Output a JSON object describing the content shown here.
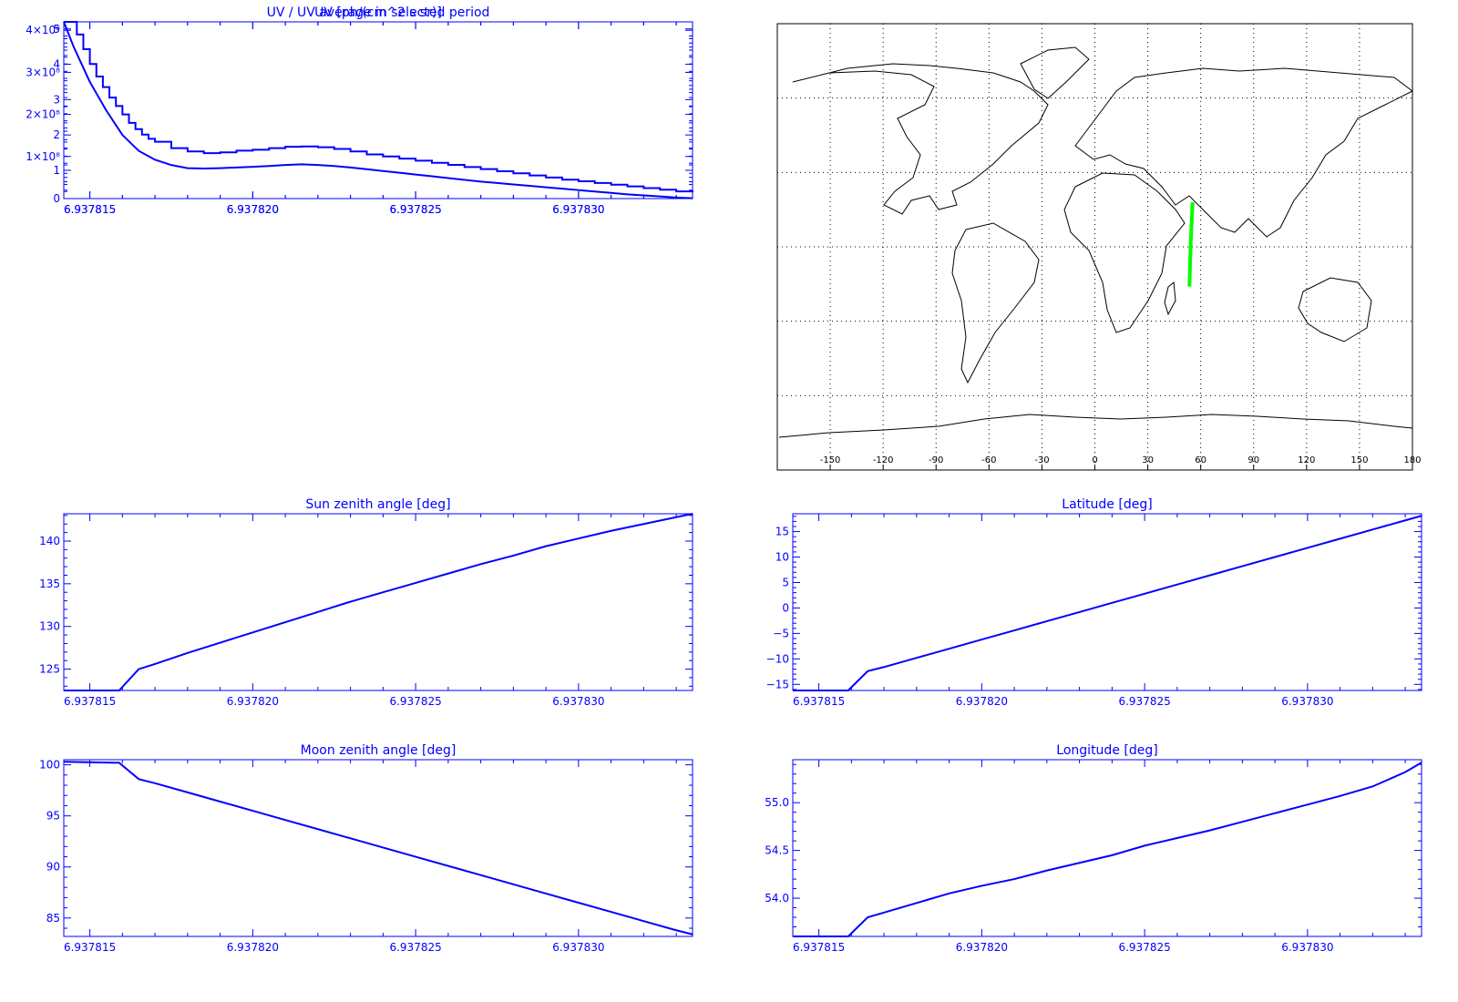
{
  "colors": {
    "plot": "#0000ff",
    "frame": "#0000ff",
    "map_coast": "#000000",
    "map_grid": "#000000",
    "track": "#00ff00"
  },
  "chart_data": [
    {
      "id": "uv",
      "type": "line",
      "title": "UV [ph/(cm^2 s sr)]",
      "xlabel": "",
      "ylabel": "",
      "xlim": [
        6.9378142,
        6.9378335
      ],
      "ylim": [
        0,
        420000000.0
      ],
      "x_ticks": [
        6.937815,
        6.93782,
        6.937825,
        6.93783
      ],
      "x_tick_labels": [
        "6.937815",
        "6.937820",
        "6.937825",
        "6.937830"
      ],
      "y_ticks": [
        0,
        100000000.0,
        200000000.0,
        300000000.0,
        400000000.0
      ],
      "y_tick_labels": [
        "0",
        "1×10⁸",
        "2×10⁸",
        "3×10⁸",
        "4×10⁸"
      ],
      "series": [
        {
          "style": "steps",
          "x": [
            6.937814,
            6.9378144,
            6.9378146,
            6.9378148,
            6.937815,
            6.9378152,
            6.9378154,
            6.9378156,
            6.9378158,
            6.937816,
            6.9378162,
            6.9378164,
            6.9378166,
            6.9378168,
            6.937817,
            6.9378175,
            6.937818,
            6.9378185,
            6.937819,
            6.9378195,
            6.93782,
            6.9378205,
            6.937821,
            6.9378215,
            6.937822,
            6.9378225,
            6.937823,
            6.9378235,
            6.937824,
            6.9378245,
            6.937825,
            6.9378255,
            6.937826,
            6.9378265,
            6.937827,
            6.9378275,
            6.937828,
            6.9378285,
            6.937829,
            6.9378295,
            6.93783,
            6.9378305,
            6.937831,
            6.9378315,
            6.937832,
            6.9378325,
            6.937833,
            6.9378335
          ],
          "y": [
            420000000.0,
            420000000.0,
            390000000.0,
            355000000.0,
            320000000.0,
            290000000.0,
            265000000.0,
            240000000.0,
            220000000.0,
            200000000.0,
            180000000.0,
            165000000.0,
            152000000.0,
            142000000.0,
            135000000.0,
            120000000.0,
            112000000.0,
            108000000.0,
            110000000.0,
            114000000.0,
            116000000.0,
            120000000.0,
            123000000.0,
            124000000.0,
            122000000.0,
            118000000.0,
            112000000.0,
            105000000.0,
            100000000.0,
            95000000.0,
            90000000.0,
            85000000.0,
            80000000.0,
            75000000.0,
            70000000.0,
            65000000.0,
            60000000.0,
            55000000.0,
            50000000.0,
            45000000.0,
            41000000.0,
            37000000.0,
            33000000.0,
            29000000.0,
            25000000.0,
            21000000.0,
            17000000.0,
            15000000.0
          ]
        }
      ]
    },
    {
      "id": "uv_ratio",
      "type": "line",
      "title": "UV / UV average in selected period",
      "xlabel": "",
      "ylabel": "",
      "xlim": [
        6.9378142,
        6.9378335
      ],
      "ylim": [
        0.2,
        5.2
      ],
      "x_ticks": [
        6.937815,
        6.93782,
        6.937825,
        6.93783
      ],
      "x_tick_labels": [
        "6.937815",
        "6.937820",
        "6.937825",
        "6.937830"
      ],
      "y_ticks": [
        1,
        2,
        3,
        4,
        5
      ],
      "y_tick_labels": [
        "1",
        "2",
        "3",
        "4",
        "5"
      ],
      "series": [
        {
          "x": [
            6.9378142,
            6.9378145,
            6.9378148,
            6.937815,
            6.9378155,
            6.937816,
            6.9378165,
            6.937817,
            6.9378175,
            6.937818,
            6.9378185,
            6.937819,
            6.9378195,
            6.93782,
            6.9378205,
            6.937821,
            6.9378215,
            6.937822,
            6.9378225,
            6.937823,
            6.9378235,
            6.937824,
            6.9378245,
            6.937825,
            6.9378255,
            6.937826,
            6.9378265,
            6.937827,
            6.9378275,
            6.937828,
            6.9378285,
            6.937829,
            6.9378295,
            6.93783,
            6.9378305,
            6.937831,
            6.9378315,
            6.937832,
            6.9378325,
            6.937833,
            6.9378335
          ],
          "y": [
            5.2,
            4.5,
            3.9,
            3.5,
            2.7,
            2.0,
            1.55,
            1.3,
            1.15,
            1.06,
            1.05,
            1.06,
            1.08,
            1.1,
            1.12,
            1.15,
            1.17,
            1.15,
            1.12,
            1.08,
            1.03,
            0.98,
            0.93,
            0.88,
            0.83,
            0.78,
            0.73,
            0.68,
            0.64,
            0.6,
            0.56,
            0.52,
            0.48,
            0.44,
            0.4,
            0.36,
            0.32,
            0.29,
            0.26,
            0.23,
            0.21
          ]
        }
      ]
    },
    {
      "id": "sun_zenith",
      "type": "line",
      "title": "Sun zenith angle [deg]",
      "xlabel": "",
      "ylabel": "",
      "xlim": [
        6.9378142,
        6.9378335
      ],
      "ylim": [
        122.5,
        143.2
      ],
      "x_ticks": [
        6.937815,
        6.93782,
        6.937825,
        6.93783
      ],
      "x_tick_labels": [
        "6.937815",
        "6.937820",
        "6.937825",
        "6.937830"
      ],
      "y_ticks": [
        125,
        130,
        135,
        140
      ],
      "y_tick_labels": [
        "125",
        "130",
        "135",
        "140"
      ],
      "series": [
        {
          "x": [
            6.9378142,
            6.9378159,
            6.9378165,
            6.937817,
            6.937818,
            6.937819,
            6.93782,
            6.937821,
            6.937822,
            6.937823,
            6.937824,
            6.937825,
            6.937826,
            6.937827,
            6.937828,
            6.937829,
            6.93783,
            6.937831,
            6.937832,
            6.937833,
            6.9378335
          ],
          "y": [
            122.5,
            122.5,
            125.0,
            125.6,
            126.9,
            128.1,
            129.3,
            130.5,
            131.7,
            132.9,
            134.0,
            135.1,
            136.2,
            137.3,
            138.3,
            139.4,
            140.3,
            141.2,
            142.0,
            142.8,
            143.2
          ]
        }
      ]
    },
    {
      "id": "latitude",
      "type": "line",
      "title": "Latitude [deg]",
      "xlabel": "",
      "ylabel": "",
      "xlim": [
        6.9378142,
        6.9378335
      ],
      "ylim": [
        -16.2,
        18.5
      ],
      "x_ticks": [
        6.937815,
        6.93782,
        6.937825,
        6.93783
      ],
      "x_tick_labels": [
        "6.937815",
        "6.937820",
        "6.937825",
        "6.937830"
      ],
      "y_ticks": [
        -15,
        -10,
        -5,
        0,
        5,
        10,
        15
      ],
      "y_tick_labels": [
        "−15",
        "−10",
        "−5",
        "0",
        "5",
        "10",
        "15"
      ],
      "series": [
        {
          "x": [
            6.9378142,
            6.9378159,
            6.9378165,
            6.937817,
            6.937818,
            6.937819,
            6.93782,
            6.937821,
            6.937822,
            6.937823,
            6.937824,
            6.937825,
            6.937826,
            6.937827,
            6.937828,
            6.937829,
            6.93783,
            6.937831,
            6.937832,
            6.937833,
            6.9378335
          ],
          "y": [
            -16.2,
            -16.2,
            -12.4,
            -11.6,
            -9.8,
            -8.0,
            -6.2,
            -4.4,
            -2.6,
            -0.8,
            1.0,
            2.8,
            4.6,
            6.4,
            8.2,
            10.0,
            11.8,
            13.6,
            15.4,
            17.2,
            18.1
          ]
        }
      ]
    },
    {
      "id": "moon_zenith",
      "type": "line",
      "title": "Moon zenith angle [deg]",
      "xlabel": "",
      "ylabel": "",
      "xlim": [
        6.9378142,
        6.9378335
      ],
      "ylim": [
        83.2,
        100.5
      ],
      "x_ticks": [
        6.937815,
        6.93782,
        6.937825,
        6.93783
      ],
      "x_tick_labels": [
        "6.937815",
        "6.937820",
        "6.937825",
        "6.937830"
      ],
      "y_ticks": [
        85,
        90,
        95,
        100
      ],
      "y_tick_labels": [
        "85",
        "90",
        "95",
        "100"
      ],
      "series": [
        {
          "x": [
            6.9378142,
            6.9378159,
            6.9378165,
            6.937817,
            6.937818,
            6.937819,
            6.93782,
            6.937821,
            6.937822,
            6.937823,
            6.937824,
            6.937825,
            6.937826,
            6.937827,
            6.937828,
            6.937829,
            6.93783,
            6.937831,
            6.937832,
            6.937833,
            6.9378335
          ],
          "y": [
            100.3,
            100.2,
            98.6,
            98.2,
            97.3,
            96.4,
            95.5,
            94.6,
            93.7,
            92.8,
            91.9,
            91.0,
            90.1,
            89.2,
            88.3,
            87.4,
            86.5,
            85.6,
            84.7,
            83.8,
            83.4
          ]
        }
      ]
    },
    {
      "id": "longitude",
      "type": "line",
      "title": "Longitude [deg]",
      "xlabel": "",
      "ylabel": "",
      "xlim": [
        6.9378142,
        6.9378335
      ],
      "ylim": [
        53.6,
        55.45
      ],
      "x_ticks": [
        6.937815,
        6.93782,
        6.937825,
        6.93783
      ],
      "x_tick_labels": [
        "6.937815",
        "6.937820",
        "6.937825",
        "6.937830"
      ],
      "y_ticks": [
        54.0,
        54.5,
        55.0
      ],
      "y_tick_labels": [
        "54.0",
        "54.5",
        "55.0"
      ],
      "series": [
        {
          "x": [
            6.9378142,
            6.9378159,
            6.9378165,
            6.937817,
            6.937818,
            6.937819,
            6.93782,
            6.937821,
            6.937822,
            6.937823,
            6.937824,
            6.937825,
            6.937826,
            6.937827,
            6.937828,
            6.937829,
            6.93783,
            6.937831,
            6.937832,
            6.937833,
            6.9378335
          ],
          "y": [
            53.6,
            53.6,
            53.8,
            53.85,
            53.95,
            54.05,
            54.13,
            54.2,
            54.29,
            54.37,
            54.45,
            54.55,
            54.63,
            54.71,
            54.8,
            54.89,
            54.98,
            55.07,
            55.17,
            55.32,
            55.42
          ]
        }
      ]
    },
    {
      "id": "world_map",
      "type": "map",
      "title": "",
      "xlim": [
        -180,
        180
      ],
      "ylim": [
        -90,
        90
      ],
      "x_ticks": [
        -150,
        -120,
        -90,
        -60,
        -30,
        0,
        30,
        60,
        90,
        120,
        150,
        180
      ],
      "x_tick_labels": [
        "-150",
        "-120",
        "-90",
        "-60",
        "-30",
        "0",
        "30",
        "60",
        "90",
        "120",
        "150",
        "180"
      ],
      "grid_lon": [
        -150,
        -120,
        -90,
        -60,
        -30,
        0,
        30,
        60,
        90,
        120,
        150
      ],
      "grid_lat": [
        -60,
        -30,
        0,
        30,
        60
      ],
      "track": {
        "lon": [
          53.6,
          54.3,
          55.4
        ],
        "lat": [
          -16,
          1,
          18
        ]
      }
    }
  ]
}
